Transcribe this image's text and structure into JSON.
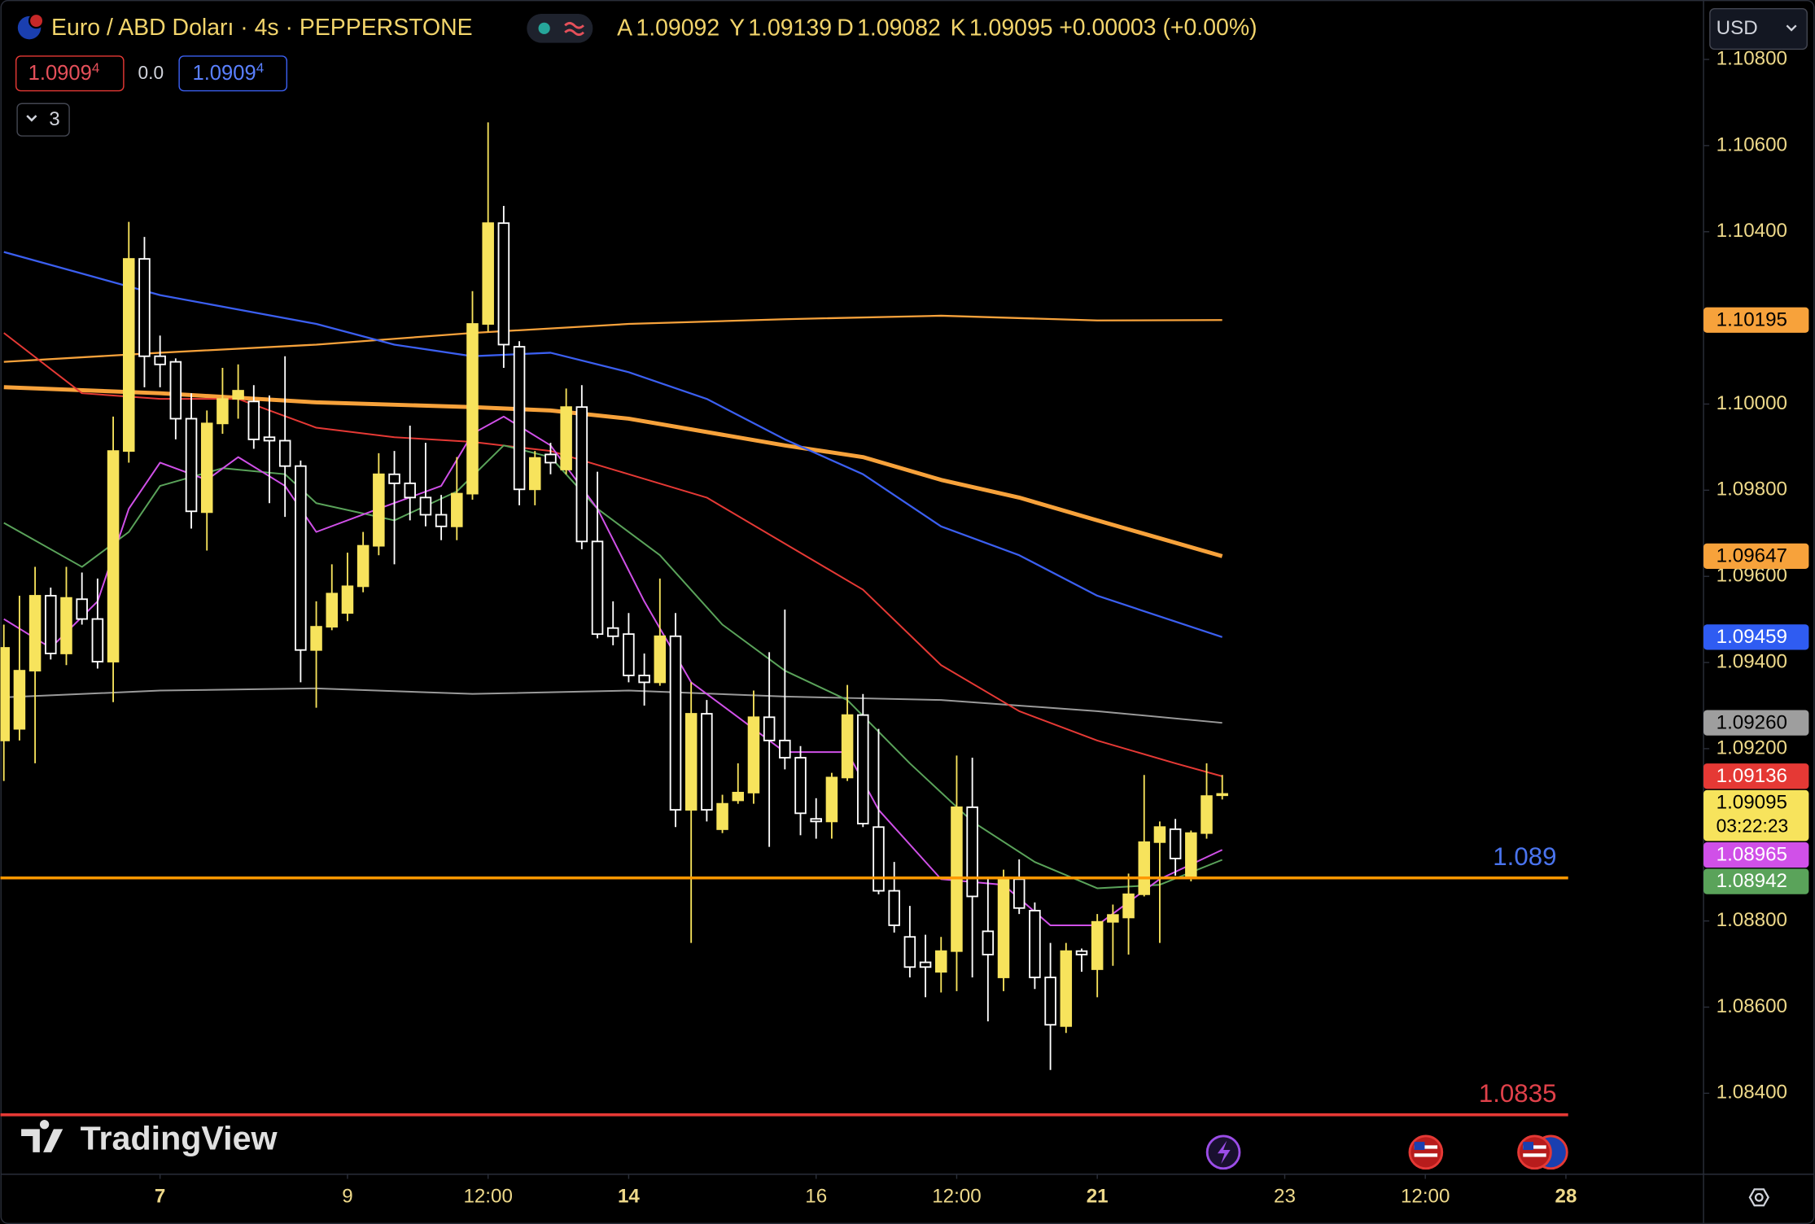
{
  "header": {
    "symbol": "Euro / ABD Doları · 4s · PEPPERSTONE",
    "ohlc": [
      {
        "label": "A",
        "value": "1.09092"
      },
      {
        "label": "Y",
        "value": "1.09139"
      },
      {
        "label": "D",
        "value": "1.09082"
      },
      {
        "label": "K",
        "value": "1.09095"
      }
    ],
    "change": "+0.00003 (+0.00%)",
    "sell": "1.0909",
    "sell_pip": "4",
    "spread": "0.0",
    "buy": "1.0909",
    "buy_pip": "4",
    "indicators": "3",
    "currency": "USD"
  },
  "logo": "TradingView",
  "chart_data": {
    "type": "candlestick",
    "xlim": [
      -0.22,
      108.81
    ],
    "ylim": [
      1.08212,
      1.10938
    ],
    "xticks": [
      {
        "value": 10,
        "label": "7",
        "bold": true
      },
      {
        "value": 22,
        "label": "9"
      },
      {
        "value": 31,
        "label": "12:00"
      },
      {
        "value": 40,
        "label": "14",
        "bold": true
      },
      {
        "value": 52,
        "label": "16"
      },
      {
        "value": 61,
        "label": "12:00"
      },
      {
        "value": 70,
        "label": "21",
        "bold": true
      },
      {
        "value": 82,
        "label": "23"
      },
      {
        "value": 91,
        "label": "12:00"
      },
      {
        "value": 100,
        "label": "28",
        "bold": true
      }
    ],
    "yticks": [
      {
        "value": 1.108,
        "label": "1.10800"
      },
      {
        "value": 1.106,
        "label": "1.10600"
      },
      {
        "value": 1.104,
        "label": "1.10400"
      },
      {
        "value": 1.1,
        "label": "1.10000"
      },
      {
        "value": 1.098,
        "label": "1.09800"
      },
      {
        "value": 1.096,
        "label": "1.09600"
      },
      {
        "value": 1.094,
        "label": "1.09400"
      },
      {
        "value": 1.092,
        "label": "1.09200"
      },
      {
        "value": 1.088,
        "label": "1.08800"
      },
      {
        "value": 1.086,
        "label": "1.08600"
      },
      {
        "value": 1.084,
        "label": "1.08400"
      }
    ],
    "up_color": "#f7e35c",
    "down_color": "#ffffff",
    "candles": {
      "open": [
        1.09219,
        1.09246,
        1.09381,
        1.09555,
        1.09421,
        1.09547,
        1.09501,
        1.09402,
        1.09891,
        1.10337,
        1.10111,
        1.10098,
        1.09966,
        1.09749,
        1.09955,
        1.10012,
        1.10006,
        1.09923,
        1.09915,
        1.09856,
        1.09429,
        1.09483,
        1.09515,
        1.09577,
        1.09671,
        1.09837,
        1.09816,
        1.09783,
        1.09743,
        1.09716,
        1.09792,
        1.10186,
        1.1042,
        1.10133,
        1.09802,
        1.09883,
        1.09848,
        1.09993,
        1.09681,
        1.0948,
        1.09466,
        1.0937,
        1.09354,
        1.09461,
        1.09058,
        1.09281,
        1.09013,
        1.0908,
        1.09098,
        1.09273,
        1.09219,
        1.09179,
        1.09037,
        1.09031,
        1.09133,
        1.09278,
        1.09018,
        1.0887,
        1.08763,
        1.08704,
        1.08682,
        1.0873,
        1.09064,
        1.08776,
        1.08669,
        1.08897,
        1.08824,
        1.08669,
        1.08556,
        1.0873,
        1.08688,
        1.08798,
        1.08808,
        1.08862,
        1.08983,
        1.09013,
        1.08902,
        1.09004,
        1.09092
      ],
      "high": [
        1.09488,
        1.09555,
        1.09622,
        1.09574,
        1.09622,
        1.09609,
        1.09595,
        1.09971,
        1.10423,
        1.10388,
        1.10159,
        1.10106,
        1.10025,
        1.09985,
        1.10084,
        1.10092,
        1.10044,
        1.1002,
        1.10111,
        1.09869,
        1.09542,
        1.09628,
        1.09655,
        1.09703,
        1.09886,
        1.09891,
        1.0995,
        1.0991,
        1.09789,
        1.09877,
        1.10262,
        1.10654,
        1.1046,
        1.10146,
        1.09891,
        1.0991,
        1.10036,
        1.10044,
        1.09843,
        1.09542,
        1.09515,
        1.09421,
        1.09595,
        1.09515,
        1.09354,
        1.09313,
        1.09093,
        1.09166,
        1.09335,
        1.09424,
        1.09523,
        1.09206,
        1.09085,
        1.09144,
        1.09348,
        1.09327,
        1.09246,
        1.08937,
        1.08835,
        1.08768,
        1.08763,
        1.09184,
        1.09179,
        1.08902,
        1.08919,
        1.08943,
        1.08843,
        1.08749,
        1.08749,
        1.08736,
        1.08816,
        1.08838,
        1.0891,
        1.09139,
        1.09031,
        1.09037,
        1.0901,
        1.09166,
        1.09139
      ],
      "low": [
        1.09125,
        1.09219,
        1.09166,
        1.09407,
        1.09394,
        1.09488,
        1.09386,
        1.09308,
        1.09864,
        1.10039,
        1.10039,
        1.09918,
        1.09711,
        1.0966,
        1.09931,
        1.09966,
        1.09896,
        1.0977,
        1.09738,
        1.09354,
        1.09295,
        1.09475,
        1.09496,
        1.09563,
        1.09649,
        1.09628,
        1.0973,
        1.09716,
        1.09684,
        1.09684,
        1.09778,
        1.10168,
        1.10084,
        1.09765,
        1.09765,
        1.09837,
        1.09837,
        1.09663,
        1.09456,
        1.0944,
        1.09354,
        1.093,
        1.09346,
        1.09018,
        1.08749,
        1.09031,
        1.09004,
        1.09072,
        1.09072,
        1.08972,
        1.09152,
        1.08999,
        1.08991,
        1.08991,
        1.09125,
        1.09018,
        1.08862,
        1.08773,
        1.08669,
        1.08623,
        1.08634,
        1.08637,
        1.08669,
        1.08567,
        1.08637,
        1.08816,
        1.08642,
        1.08454,
        1.0854,
        1.08682,
        1.08623,
        1.08696,
        1.08722,
        1.08857,
        1.08749,
        1.08905,
        1.08892,
        1.08991,
        1.09082
      ],
      "close": [
        1.09434,
        1.09381,
        1.09555,
        1.09421,
        1.0955,
        1.09501,
        1.09402,
        1.09891,
        1.10337,
        1.10111,
        1.10092,
        1.09966,
        1.09751,
        1.09955,
        1.10012,
        1.10031,
        1.09918,
        1.09915,
        1.09856,
        1.09429,
        1.09483,
        1.0956,
        1.09577,
        1.09671,
        1.09837,
        1.09816,
        1.09783,
        1.09743,
        1.09716,
        1.09792,
        1.10186,
        1.1042,
        1.10138,
        1.09802,
        1.09875,
        1.09864,
        1.09993,
        1.09681,
        1.09466,
        1.09461,
        1.0937,
        1.09354,
        1.09461,
        1.09058,
        1.09281,
        1.09058,
        1.09072,
        1.09098,
        1.09273,
        1.09219,
        1.09179,
        1.0905,
        1.09031,
        1.09133,
        1.09278,
        1.09026,
        1.0887,
        1.0879,
        1.08693,
        1.08693,
        1.0873,
        1.09064,
        1.08857,
        1.08722,
        1.08897,
        1.0883,
        1.08669,
        1.08559,
        1.0873,
        1.08722,
        1.08798,
        1.08814,
        1.08862,
        1.08983,
        1.09018,
        1.08945,
        1.09004,
        1.0909,
        1.09095
      ]
    },
    "series": [
      {
        "color": "#f7a23b",
        "width": 1.6,
        "x": [
          0,
          10,
          20,
          30,
          40,
          50,
          60,
          70,
          78
        ],
        "values": [
          1.10098,
          1.10119,
          1.10138,
          1.10165,
          1.10186,
          1.10197,
          1.10205,
          1.10194,
          1.10195
        ]
      },
      {
        "color": "#f7a23b",
        "width": 3.5,
        "x": [
          0,
          10,
          20,
          30,
          35,
          40,
          50,
          55,
          60,
          65,
          70,
          78
        ],
        "values": [
          1.10039,
          1.10025,
          1.10004,
          1.09993,
          1.09985,
          1.09966,
          1.09904,
          1.09877,
          1.09824,
          1.09783,
          1.0973,
          1.09647
        ]
      },
      {
        "color": "#3b5ff0",
        "width": 1.6,
        "x": [
          0,
          10,
          20,
          25,
          30,
          35,
          40,
          45,
          50,
          55,
          60,
          65,
          70,
          78
        ],
        "values": [
          1.10353,
          1.10253,
          1.10186,
          1.10138,
          1.10111,
          1.10119,
          1.10074,
          1.10012,
          1.09918,
          1.09837,
          1.09716,
          1.09649,
          1.09555,
          1.09459
        ]
      },
      {
        "color": "#9a9a9a",
        "width": 1.4,
        "x": [
          0,
          10,
          20,
          30,
          40,
          50,
          60,
          70,
          78
        ],
        "values": [
          1.09319,
          1.09335,
          1.0934,
          1.09327,
          1.09335,
          1.09321,
          1.09313,
          1.09287,
          1.0926
        ]
      },
      {
        "color": "#e53935",
        "width": 1.4,
        "x": [
          0,
          5,
          10,
          15,
          20,
          25,
          30,
          35,
          40,
          45,
          50,
          55,
          60,
          65,
          70,
          75,
          78
        ],
        "values": [
          1.10165,
          1.10025,
          1.10012,
          1.10012,
          1.09945,
          1.09923,
          1.09912,
          1.09891,
          1.09837,
          1.09783,
          1.09676,
          1.09569,
          1.09394,
          1.09287,
          1.09219,
          1.09166,
          1.09136
        ]
      },
      {
        "color": "#5aa35a",
        "width": 1.4,
        "x": [
          0,
          5,
          8,
          10,
          14,
          18,
          20,
          25,
          29,
          32,
          35,
          38,
          42,
          46,
          50,
          54,
          58,
          62,
          66,
          70,
          74,
          78
        ],
        "values": [
          1.09724,
          1.09622,
          1.09703,
          1.0981,
          1.09851,
          1.09837,
          1.0977,
          1.0973,
          1.09797,
          1.09904,
          1.09877,
          1.09757,
          1.09649,
          1.09488,
          1.09381,
          1.09313,
          1.09166,
          1.09031,
          1.08937,
          1.08876,
          1.08884,
          1.08942
        ]
      },
      {
        "color": "#d050e8",
        "width": 1.4,
        "x": [
          0,
          3,
          6,
          8,
          10,
          13,
          15,
          18,
          20,
          24,
          28,
          30,
          32,
          35,
          38,
          41,
          44,
          47,
          50,
          54,
          56,
          60,
          64,
          67,
          70,
          74,
          78
        ],
        "values": [
          1.09501,
          1.09434,
          1.09542,
          1.09757,
          1.09864,
          1.09824,
          1.09877,
          1.0981,
          1.09703,
          1.09757,
          1.0981,
          1.09931,
          1.09971,
          1.09904,
          1.09757,
          1.09542,
          1.09354,
          1.09273,
          1.09192,
          1.09192,
          1.09058,
          1.08897,
          1.08884,
          1.0879,
          1.0879,
          1.08897,
          1.08965
        ]
      }
    ],
    "levels": [
      {
        "value": 1.089,
        "color": "#ff9800",
        "label_color": "#4a74ee"
      },
      {
        "value": 1.0835,
        "color": "#e53935",
        "label_color": "#e0414a"
      }
    ],
    "price_tags": [
      {
        "value": 1.10195,
        "label": "1.10195",
        "color": "#f7a23b",
        "text_color": "#000000"
      },
      {
        "value": 1.09647,
        "label": "1.09647",
        "color": "#f7a23b",
        "text_color": "#000000"
      },
      {
        "value": 1.09459,
        "label": "1.09459",
        "color": "#2f5cf2",
        "text_color": "#ffffff"
      },
      {
        "value": 1.0926,
        "label": "1.09260",
        "color": "#9e9e9e",
        "text_color": "#000000"
      },
      {
        "value": 1.09136,
        "label": "1.09136",
        "color": "#e53935",
        "text_color": "#ffffff"
      },
      {
        "value": 1.09095,
        "label": "1.09095",
        "color": "#f7e35c",
        "text_color": "#000000",
        "countdown": "03:22:23"
      },
      {
        "value": 1.08965,
        "label": "1.08965",
        "color": "#d050e8",
        "text_color": "#ffffff"
      },
      {
        "value": 1.08942,
        "label": "1.08942",
        "color": "#5aa35a",
        "text_color": "#ffffff"
      }
    ]
  }
}
